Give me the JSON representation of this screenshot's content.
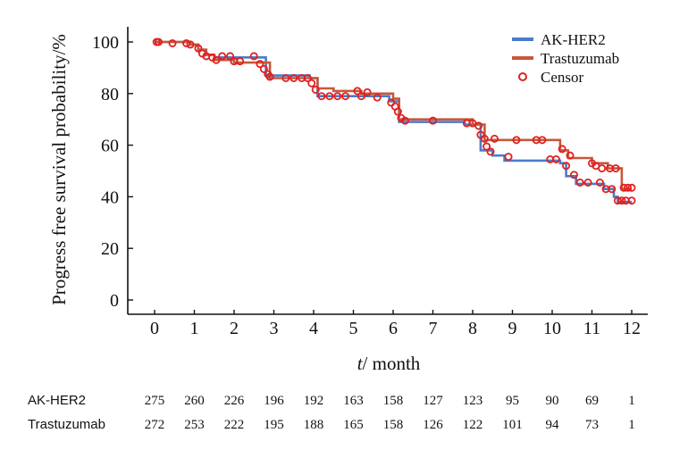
{
  "chart_data": {
    "type": "line",
    "title": "",
    "xlabel_italic": "t",
    "xlabel_rest": "/ month",
    "ylabel": "Progress free survival probability/%",
    "xlim": [
      0,
      12
    ],
    "ylim": [
      0,
      100
    ],
    "xticks": [
      "0",
      "1",
      "2",
      "3",
      "4",
      "5",
      "6",
      "7",
      "8",
      "9",
      "10",
      "11",
      "12"
    ],
    "yticks": [
      "0",
      "20",
      "40",
      "60",
      "80",
      "100"
    ],
    "grid": false,
    "legend_position": "top-right",
    "legend": [
      {
        "label": "AK-HER2",
        "kind": "line",
        "color": "#4a7cc9"
      },
      {
        "label": "Trastuzumab",
        "kind": "line",
        "color": "#c9573a"
      },
      {
        "label": "Censor",
        "kind": "marker",
        "color": "#e02020"
      }
    ],
    "series": [
      {
        "name": "AK-HER2",
        "color": "#4a7cc9",
        "x": [
          0,
          0.9,
          1.1,
          1.3,
          1.5,
          2.6,
          2.8,
          3.9,
          4.1,
          5.9,
          6.15,
          7.8,
          8.2,
          8.5,
          8.8,
          10.2,
          10.35,
          10.6,
          11.3,
          11.55,
          11.65,
          12
        ],
        "y": [
          100,
          99,
          97,
          95,
          94,
          94,
          87,
          86,
          79,
          77,
          69,
          68,
          58,
          56,
          54,
          53,
          48,
          45,
          43,
          40,
          38,
          38
        ]
      },
      {
        "name": "Trastuzumab",
        "color": "#c9573a",
        "x": [
          0,
          0.9,
          1.1,
          1.3,
          1.5,
          2.0,
          2.9,
          3.9,
          4.1,
          4.5,
          5.2,
          6.0,
          6.15,
          8.0,
          8.3,
          9.9,
          10.2,
          10.4,
          11.0,
          11.4,
          11.75,
          12
        ],
        "y": [
          100,
          99,
          97,
          95,
          93,
          92,
          86,
          86,
          82,
          81,
          80,
          78,
          70,
          68,
          62,
          62,
          58,
          55,
          53,
          51,
          43,
          43
        ]
      }
    ],
    "censor_marks": [
      {
        "x": 0.05,
        "y": 100
      },
      {
        "x": 0.1,
        "y": 100
      },
      {
        "x": 0.45,
        "y": 99.5
      },
      {
        "x": 0.8,
        "y": 99.5
      },
      {
        "x": 0.9,
        "y": 99
      },
      {
        "x": 1.1,
        "y": 97.5
      },
      {
        "x": 1.2,
        "y": 95.5
      },
      {
        "x": 1.3,
        "y": 94.5
      },
      {
        "x": 1.45,
        "y": 94
      },
      {
        "x": 1.55,
        "y": 93
      },
      {
        "x": 1.7,
        "y": 94.5
      },
      {
        "x": 1.9,
        "y": 94.5
      },
      {
        "x": 2.0,
        "y": 92.5
      },
      {
        "x": 2.15,
        "y": 92.5
      },
      {
        "x": 2.5,
        "y": 94.5
      },
      {
        "x": 2.65,
        "y": 91.5
      },
      {
        "x": 2.75,
        "y": 89.5
      },
      {
        "x": 2.85,
        "y": 87.5
      },
      {
        "x": 2.9,
        "y": 86.5
      },
      {
        "x": 3.3,
        "y": 86
      },
      {
        "x": 3.5,
        "y": 86
      },
      {
        "x": 3.7,
        "y": 86
      },
      {
        "x": 3.85,
        "y": 86
      },
      {
        "x": 3.95,
        "y": 84
      },
      {
        "x": 4.05,
        "y": 81.5
      },
      {
        "x": 4.2,
        "y": 79
      },
      {
        "x": 4.4,
        "y": 79
      },
      {
        "x": 4.6,
        "y": 79
      },
      {
        "x": 4.8,
        "y": 79
      },
      {
        "x": 5.1,
        "y": 81
      },
      {
        "x": 5.2,
        "y": 79
      },
      {
        "x": 5.35,
        "y": 80.5
      },
      {
        "x": 5.6,
        "y": 78.5
      },
      {
        "x": 5.95,
        "y": 76.5
      },
      {
        "x": 6.05,
        "y": 75
      },
      {
        "x": 6.12,
        "y": 73
      },
      {
        "x": 6.2,
        "y": 70.5
      },
      {
        "x": 6.3,
        "y": 69.5
      },
      {
        "x": 7.0,
        "y": 69.5
      },
      {
        "x": 7.85,
        "y": 68.5
      },
      {
        "x": 8.0,
        "y": 68.5
      },
      {
        "x": 8.15,
        "y": 67.5
      },
      {
        "x": 8.2,
        "y": 64
      },
      {
        "x": 8.3,
        "y": 62.5
      },
      {
        "x": 8.35,
        "y": 59.5
      },
      {
        "x": 8.45,
        "y": 57.5
      },
      {
        "x": 8.55,
        "y": 62.5
      },
      {
        "x": 8.9,
        "y": 55.5
      },
      {
        "x": 9.1,
        "y": 62
      },
      {
        "x": 9.6,
        "y": 62
      },
      {
        "x": 9.75,
        "y": 62
      },
      {
        "x": 9.95,
        "y": 54.5
      },
      {
        "x": 10.1,
        "y": 54.5
      },
      {
        "x": 10.25,
        "y": 58.5
      },
      {
        "x": 10.35,
        "y": 52
      },
      {
        "x": 10.45,
        "y": 56
      },
      {
        "x": 10.55,
        "y": 48.5
      },
      {
        "x": 10.7,
        "y": 45.5
      },
      {
        "x": 10.9,
        "y": 45.5
      },
      {
        "x": 11.0,
        "y": 53
      },
      {
        "x": 11.1,
        "y": 52
      },
      {
        "x": 11.2,
        "y": 45.5
      },
      {
        "x": 11.25,
        "y": 51
      },
      {
        "x": 11.35,
        "y": 43
      },
      {
        "x": 11.45,
        "y": 51
      },
      {
        "x": 11.5,
        "y": 43
      },
      {
        "x": 11.6,
        "y": 51
      },
      {
        "x": 11.65,
        "y": 38.5
      },
      {
        "x": 11.75,
        "y": 38.5
      },
      {
        "x": 11.8,
        "y": 43.5
      },
      {
        "x": 11.85,
        "y": 38.5
      },
      {
        "x": 11.9,
        "y": 43.5
      },
      {
        "x": 12.0,
        "y": 43.5
      },
      {
        "x": 12.0,
        "y": 38.5
      }
    ],
    "risk_table": {
      "times": [
        "0",
        "1",
        "2",
        "3",
        "4",
        "5",
        "6",
        "7",
        "8",
        "9",
        "10",
        "11",
        "12"
      ],
      "rows": [
        {
          "name": "AK-HER2",
          "values": [
            "275",
            "260",
            "226",
            "196",
            "192",
            "163",
            "158",
            "127",
            "123",
            "95",
            "90",
            "69",
            "1"
          ]
        },
        {
          "name": "Trastuzumab",
          "values": [
            "272",
            "253",
            "222",
            "195",
            "188",
            "165",
            "158",
            "126",
            "122",
            "101",
            "94",
            "73",
            "1"
          ]
        }
      ]
    }
  }
}
